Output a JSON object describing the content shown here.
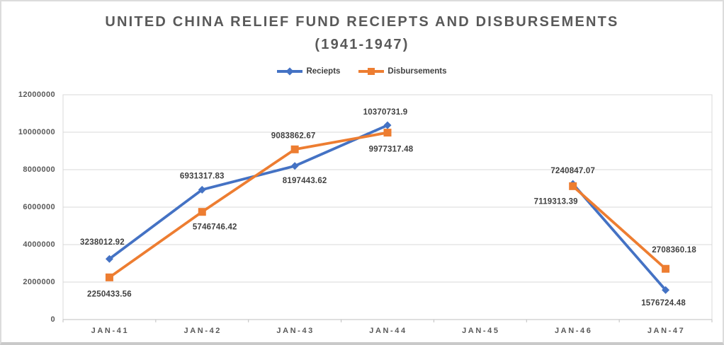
{
  "chart_data": {
    "type": "line",
    "title": "UNITED CHINA RELIEF FUND RECIEPTS AND DISBURSEMENTS",
    "subtitle": "(1941-1947)",
    "legend_position": "top",
    "grid": true,
    "categories": [
      "JAN-41",
      "JAN-42",
      "JAN-43",
      "JAN-44",
      "JAN-45",
      "JAN-46",
      "JAN-47"
    ],
    "series": [
      {
        "name": "Reciepts",
        "color": "#4472C4",
        "marker": "diamond",
        "values": [
          3238012.92,
          6931317.83,
          8197443.62,
          10370731.9,
          null,
          7240847.07,
          1576724.48
        ],
        "labels": [
          "3238012.92",
          "6931317.83",
          "8197443.62",
          "10370731.9",
          null,
          "7240847.07",
          "1576724.48"
        ],
        "label_offsets": [
          [
            -10,
            -23
          ],
          [
            0,
            -19
          ],
          [
            14,
            21
          ],
          [
            -3,
            -18
          ],
          null,
          [
            0,
            -18
          ],
          [
            -3,
            19
          ]
        ]
      },
      {
        "name": "Disbursements",
        "color": "#ED7D31",
        "marker": "square",
        "values": [
          2250433.56,
          5746746.42,
          9083862.67,
          9977317.48,
          null,
          7119313.39,
          2708360.18
        ],
        "labels": [
          "2250433.56",
          "5746746.42",
          "9083862.67",
          "9977317.48",
          null,
          "7119313.39",
          "2708360.18"
        ],
        "label_offsets": [
          [
            0,
            24
          ],
          [
            18,
            22
          ],
          [
            -2,
            -19
          ],
          [
            5,
            24
          ],
          null,
          [
            -24,
            22
          ],
          [
            12,
            -26
          ]
        ]
      }
    ],
    "y_axis": {
      "min": 0,
      "max": 12000000,
      "step": 2000000,
      "tick_labels": [
        "0",
        "2000000",
        "4000000",
        "6000000",
        "8000000",
        "10000000",
        "12000000"
      ]
    },
    "colors": {
      "gridline": "#D9D9D9",
      "axis_line": "#BFBFBF",
      "title_text": "#595959",
      "data_label_text": "#404040"
    }
  }
}
